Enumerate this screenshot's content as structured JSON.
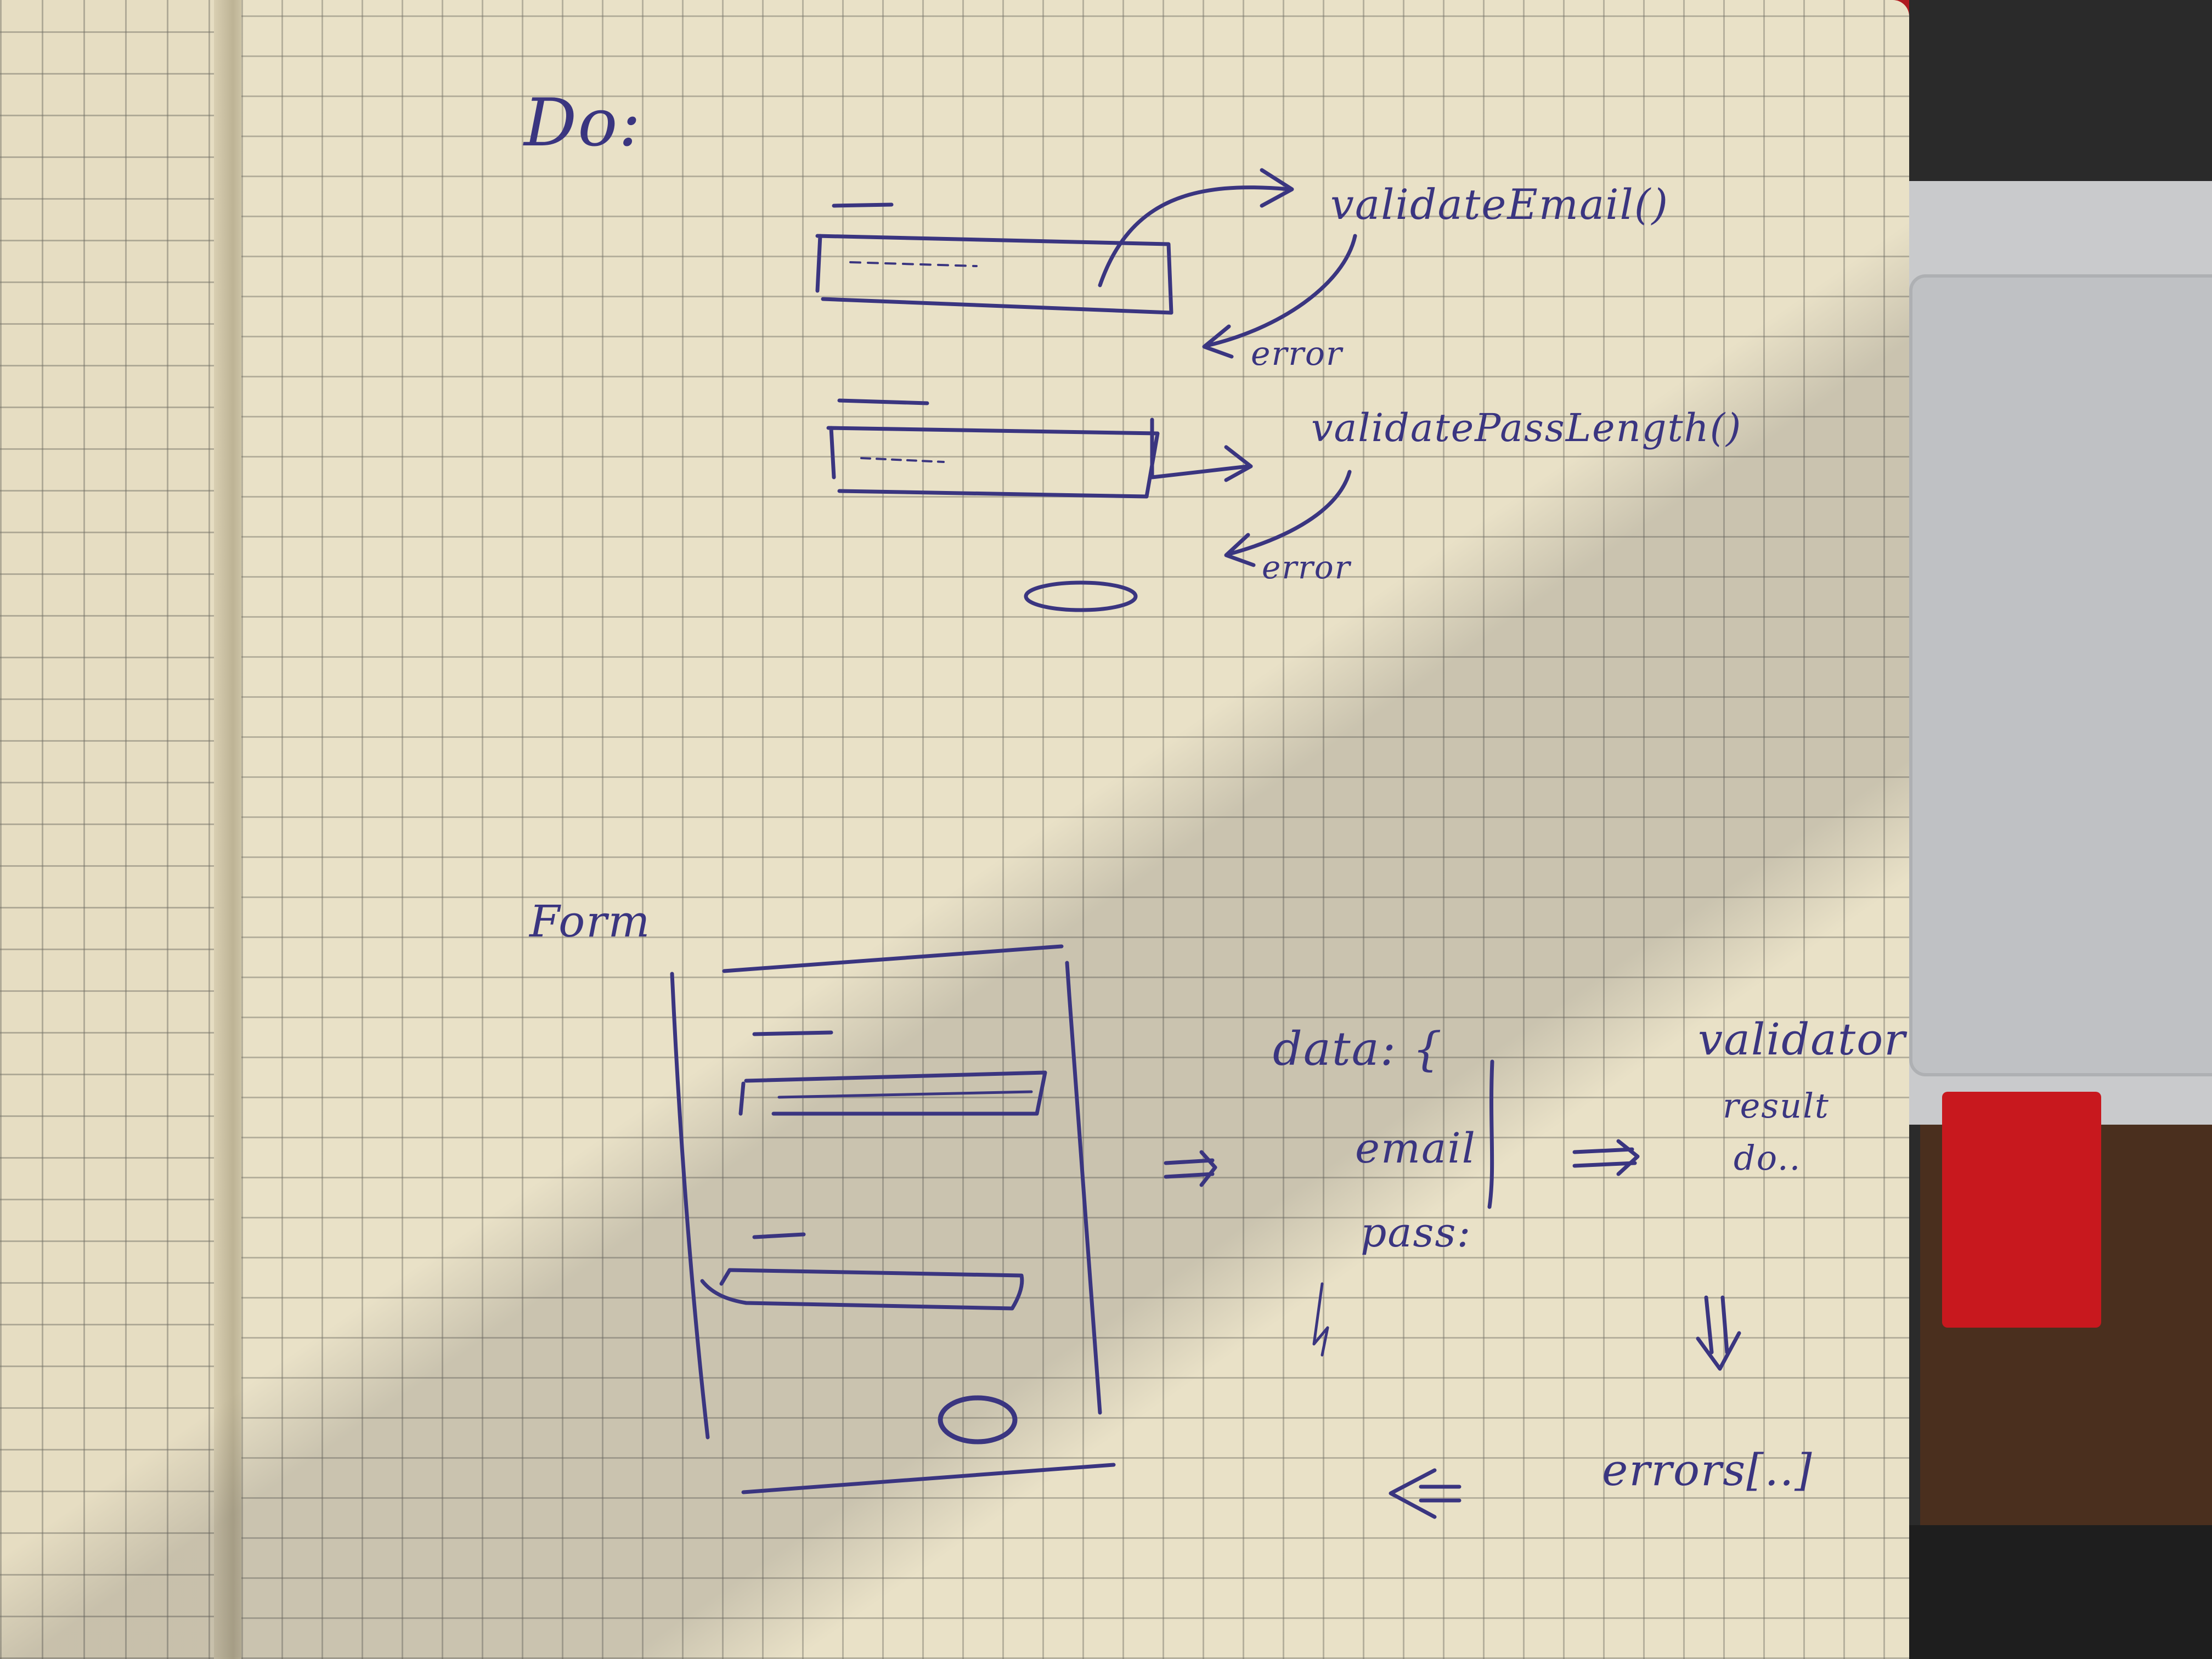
{
  "colors": {
    "paper": "#e9e1c7",
    "grid": "#a9a69a",
    "ink": "#3a3580",
    "red_band": "#c8181e",
    "laptop": "#c9cacc",
    "keyboard": "#2a2a2a"
  },
  "sketch": {
    "heading_top": "Do:",
    "top_calls": [
      {
        "label": "validateEmail()",
        "result": "error"
      },
      {
        "label": "validatePassLength()",
        "result": "error"
      }
    ],
    "heading_bottom": "Form",
    "data_block": {
      "title": "data: {",
      "fields": [
        "email",
        "pass:"
      ]
    },
    "validator": {
      "lines": [
        "validator",
        "result",
        "do.."
      ]
    },
    "errors_label": "errors[..]"
  }
}
